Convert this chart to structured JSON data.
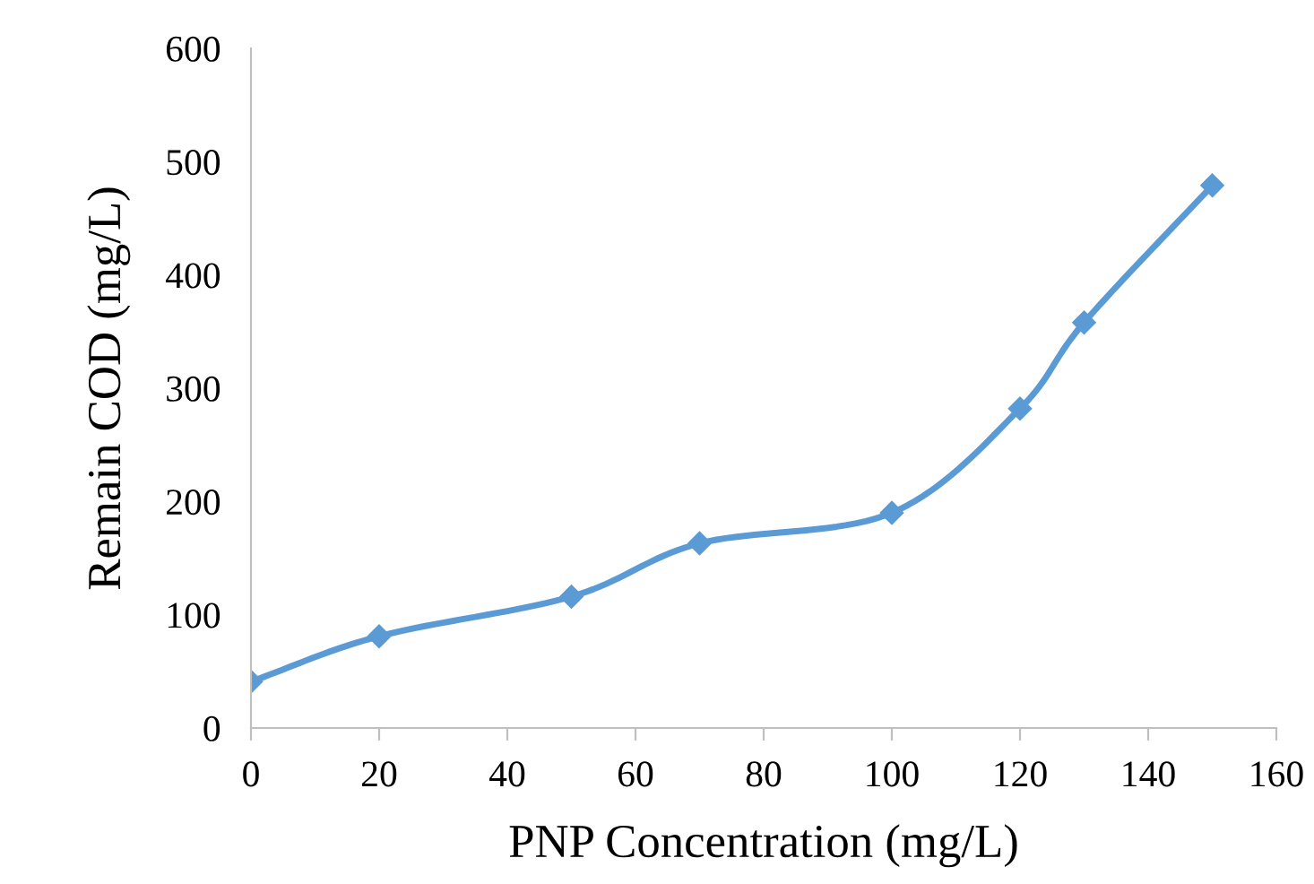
{
  "chart_data": {
    "type": "line",
    "xlabel": "PNP Concentration (mg/L)",
    "ylabel": "Remain COD (mg/L)",
    "x": [
      0,
      20,
      50,
      70,
      100,
      120,
      130,
      150
    ],
    "series": [
      {
        "color": "#5b9bd5",
        "values": [
          41,
          81,
          116,
          163,
          190,
          282,
          358,
          479
        ]
      }
    ],
    "xlim": [
      0,
      160
    ],
    "xticks": [
      0,
      20,
      40,
      60,
      80,
      100,
      120,
      140,
      160
    ],
    "ylim": [
      0,
      600
    ],
    "yticks": [
      0,
      100,
      200,
      300,
      400,
      500,
      600
    ],
    "grid": false,
    "legend": false,
    "marker": "diamond",
    "line_style": "solid"
  }
}
